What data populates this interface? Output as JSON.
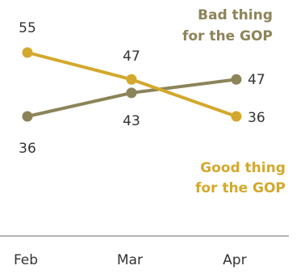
{
  "chart_data": {
    "type": "line",
    "categories": [
      "Feb",
      "Mar",
      "Apr"
    ],
    "series": [
      {
        "name": "Bad thing for the GOP",
        "label_lines": [
          "Bad thing",
          "for the GOP"
        ],
        "values": [
          36,
          43,
          47
        ],
        "color": "#8c8459"
      },
      {
        "name": "Good thing for the GOP",
        "label_lines": [
          "Good thing",
          "for the GOP"
        ],
        "values": [
          55,
          47,
          36
        ],
        "color": "#d4a82c"
      }
    ],
    "ylim": [
      36,
      55
    ],
    "axis_color": "#999999",
    "grid": false
  }
}
